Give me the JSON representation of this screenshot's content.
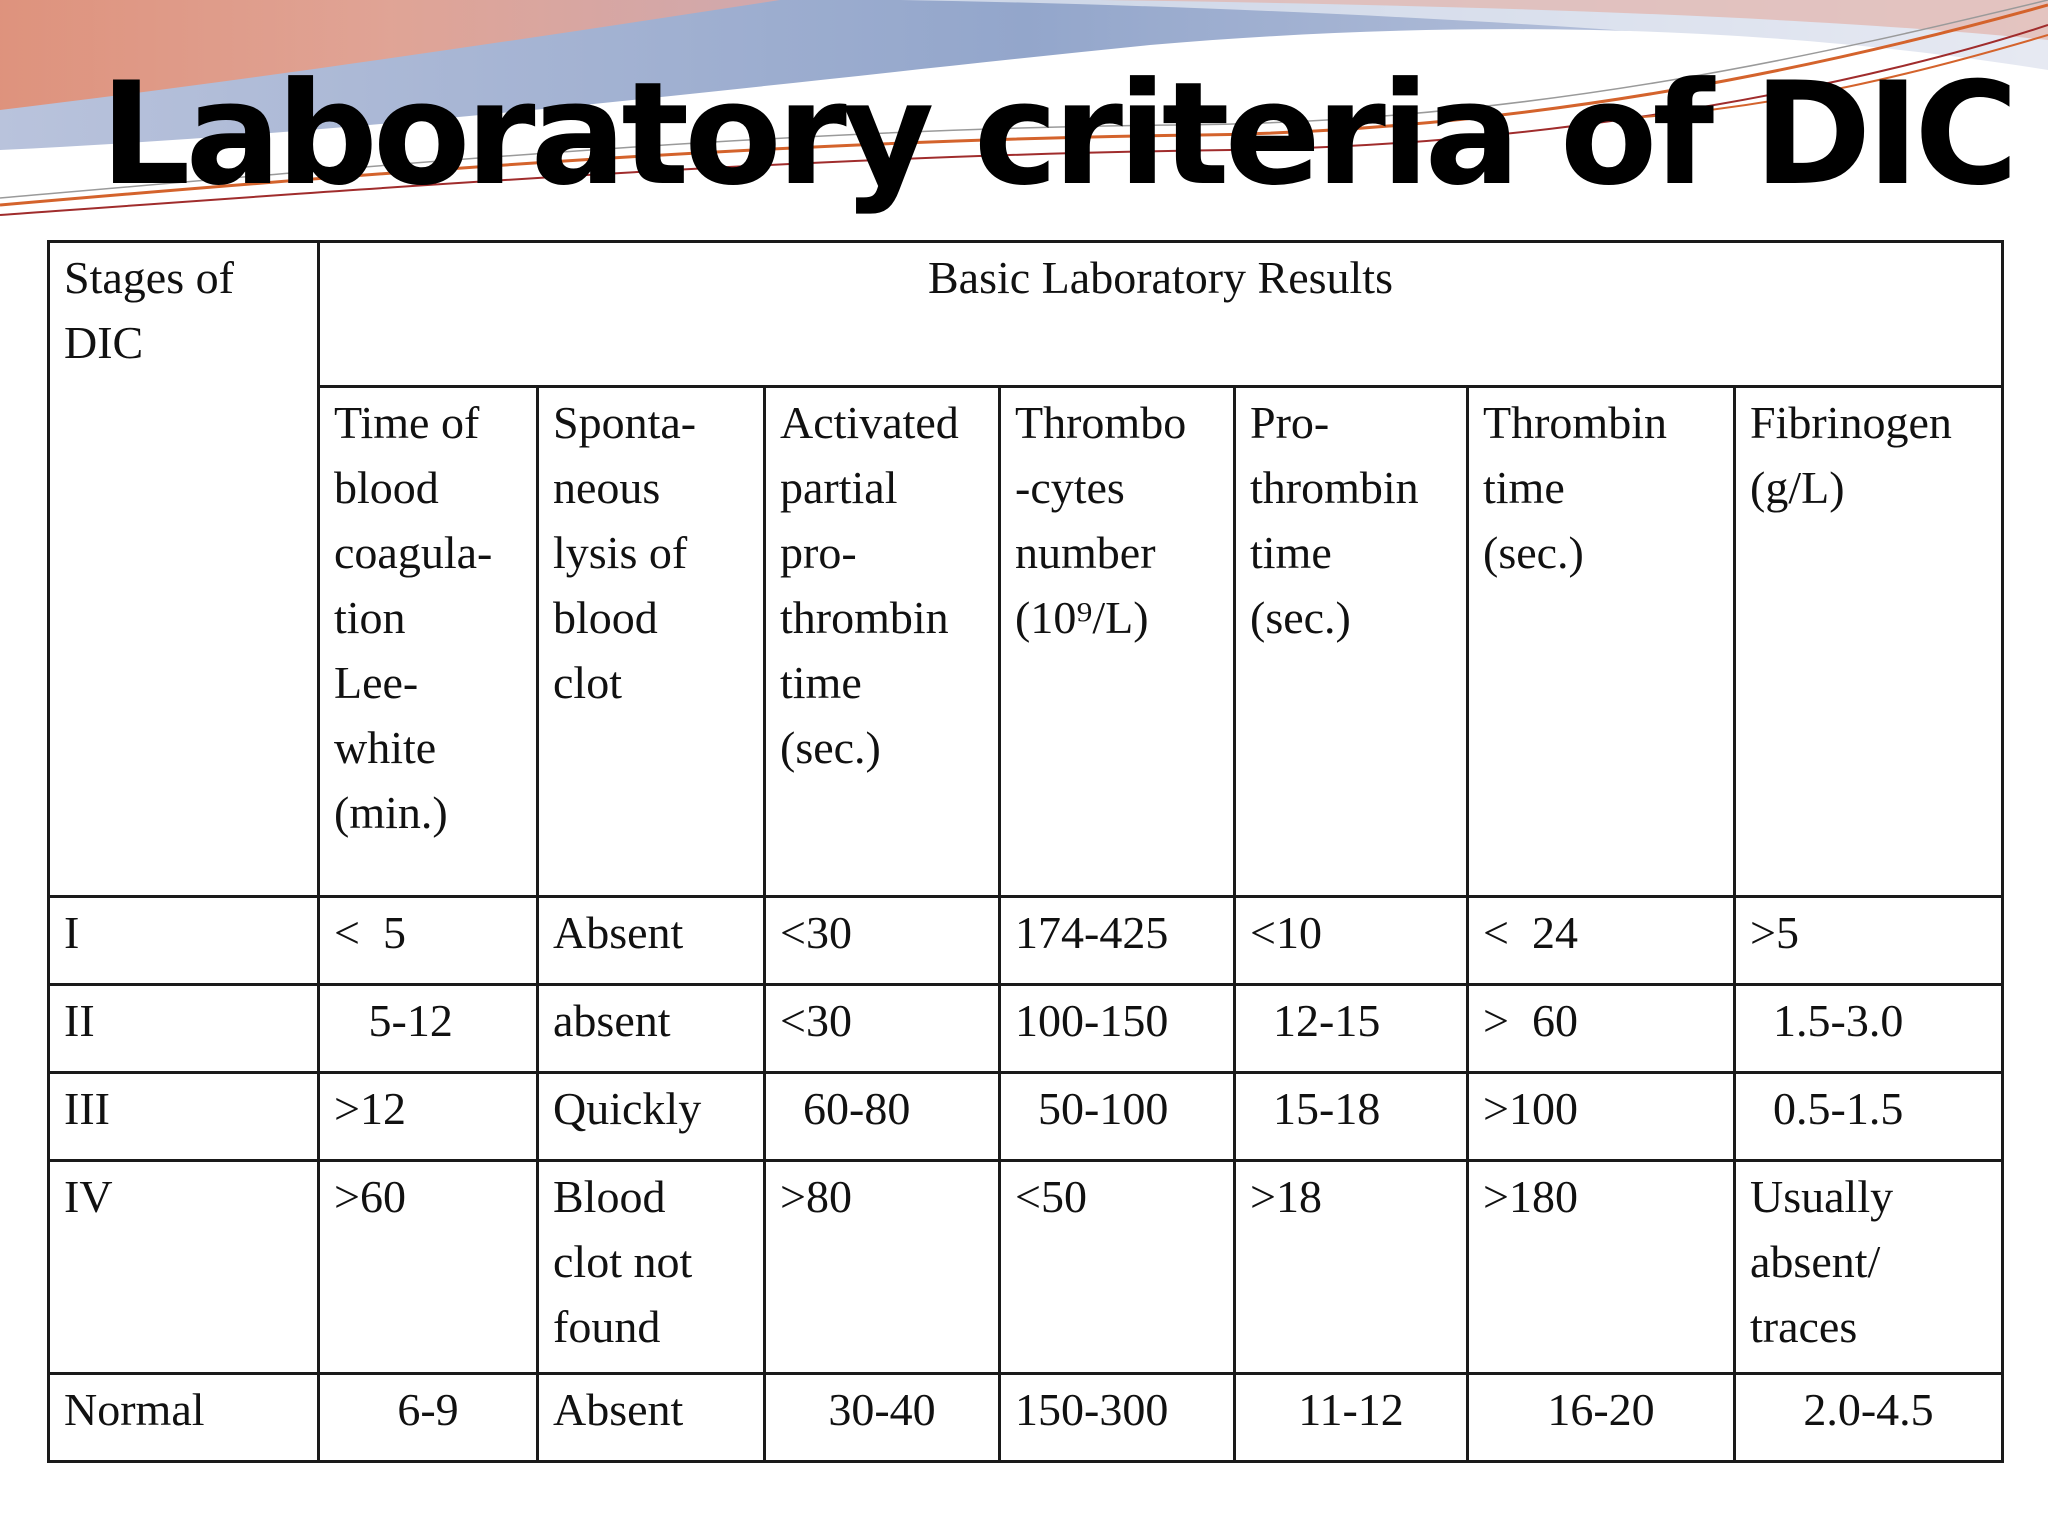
{
  "slide": {
    "title": "Laboratory criteria of DIC",
    "theme_colors": {
      "wave_blue": "#8fa3c8",
      "wave_salmon": "#e08a6f",
      "wave_pink": "#d9a8a8",
      "line_orange": "#d4632c",
      "line_red": "#a02c2c"
    }
  },
  "table": {
    "corner_header": "Stages of\nDIC",
    "group_header": "Basic Laboratory Results",
    "column_headers": [
      "Time of\nblood\ncoagula-\ntion\nLee-\nwhite\n(min.)",
      "Sponta-\nneous\nlysis of\nblood\nclot",
      "Activated\npartial\npro-\nthrombin\ntime\n(sec.)",
      "Thrombo\n-cytes\nnumber\n(10⁹/L)",
      "Pro-\nthrombin\ntime\n(sec.)",
      "Thrombin\ntime\n(sec.)",
      "Fibrinogen\n(g/L)"
    ],
    "rows": [
      {
        "stage": "I",
        "cells": [
          "<  5",
          "Absent",
          "<30",
          "174-425",
          "<10",
          "<  24",
          ">5"
        ]
      },
      {
        "stage": "II",
        "cells": [
          "   5-12",
          "absent",
          "<30",
          "100-150",
          "  12-15",
          ">  60",
          "  1.5-3.0"
        ]
      },
      {
        "stage": "III",
        "cells": [
          ">12",
          "Quickly",
          "  60-80",
          "  50-100",
          "  15-18",
          ">100",
          "  0.5-1.5"
        ]
      },
      {
        "stage": "IV",
        "cells": [
          ">60",
          "Blood\nclot not\nfound",
          ">80",
          "<50",
          ">18",
          ">180",
          "Usually\nabsent/\ntraces"
        ]
      },
      {
        "stage": "Normal",
        "cells": [
          "6-9",
          "Absent",
          "30-40",
          "150-300",
          "11-12",
          "16-20",
          "2.0-4.5"
        ]
      }
    ]
  }
}
